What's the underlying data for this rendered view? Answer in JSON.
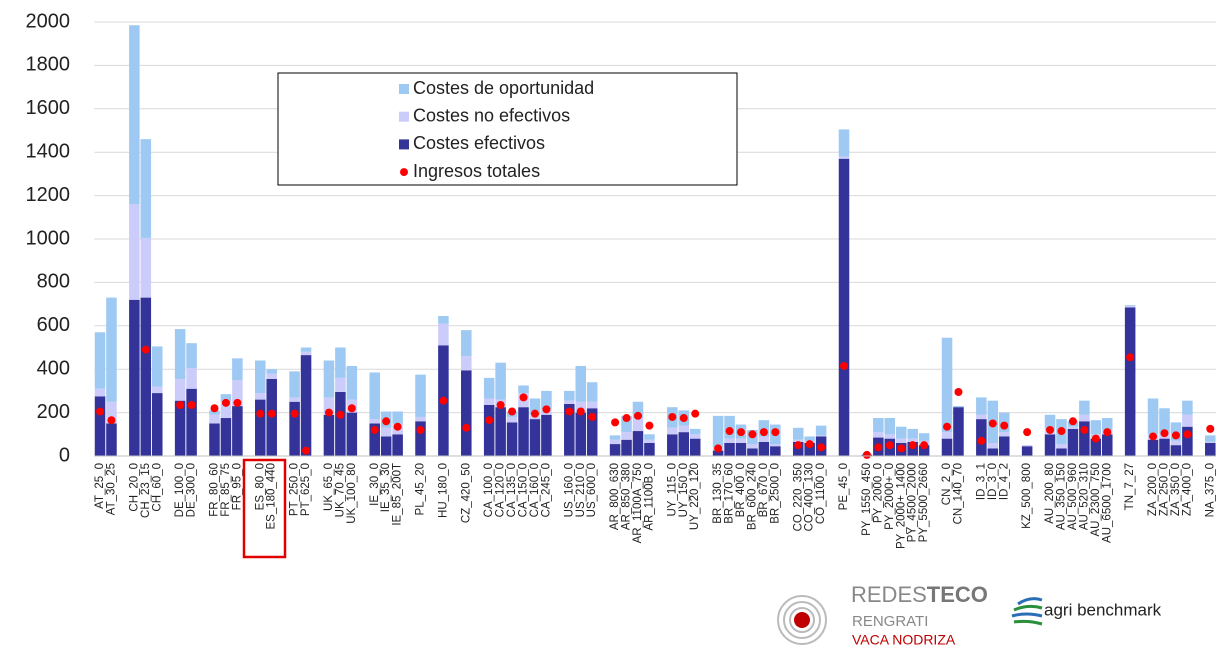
{
  "chart_data": {
    "type": "bar",
    "stacked": true,
    "categories": [
      "AT_25_0",
      "AT_30_25",
      null,
      "CH_20_0",
      "CH_23_15",
      "CH_60_0",
      null,
      "DE_100_0",
      "DE_300_0",
      null,
      "FR_80_60",
      "FR_85_75",
      "FR_95_0",
      null,
      "ES_80_0",
      "ES_180_440",
      null,
      "PT_250_0",
      "PT_625_0",
      null,
      "UK_65_0",
      "UK_70_45",
      "UK_100_80",
      null,
      "IE_30_0",
      "IE_35_30",
      "IE_85_200T",
      null,
      "PL_45_20",
      null,
      "HU_180_0",
      null,
      "CZ_420_50",
      null,
      "CA_100_0",
      "CA_120_0",
      "CA_135_0",
      "CA_150_0",
      "CA_160_0",
      "CA_245_0",
      null,
      "US_160_0",
      "US_210_0",
      "US_600_0",
      null,
      "AR_800_630",
      "AR_850_380",
      "AR_1100A_750",
      "AR_1100B_0",
      null,
      "UY_115_0",
      "UY_150_0",
      "UY_220_120",
      null,
      "BR_130_35",
      "BR_170_60",
      "BR_400_0",
      "BR_600_240",
      "BR_670_0",
      "BR_2500_0",
      null,
      "CO_220_350",
      "CO_400_130",
      "CO_1100_0",
      null,
      "PE_45_0",
      null,
      "PY_1550_450",
      "PY_2000_0",
      "PY_2000+_0",
      "PY_2000+_1400",
      "PY_4500_2000",
      "PY_5500_2660",
      null,
      "CN_2_0",
      "CN_140_70",
      null,
      "ID_3_1",
      "ID_3_0",
      "ID_4_2",
      null,
      "KZ_500_800",
      null,
      "AU_200_80",
      "AU_350_150",
      "AU_500_960",
      "AU_520_310",
      "AU_2300_750",
      "AU_6500_1700",
      null,
      "TN_7_27",
      null,
      "ZA_200_0",
      "ZA_250_0",
      "ZA_350_0",
      "ZA_400_0",
      null,
      "NA_375_0"
    ],
    "series": [
      {
        "name": "Costes de oportunidad",
        "color": "#9dc9f2",
        "kind": "bar",
        "values": [
          260,
          480,
          null,
          825,
          455,
          185,
          null,
          230,
          115,
          null,
          20,
          35,
          100,
          null,
          150,
          20,
          null,
          120,
          20,
          null,
          170,
          140,
          155,
          null,
          215,
          75,
          55,
          null,
          195,
          null,
          35,
          null,
          120,
          null,
          95,
          170,
          25,
          35,
          75,
          85,
          null,
          45,
          165,
          90,
          null,
          20,
          75,
          75,
          25,
          null,
          95,
          70,
          25,
          null,
          145,
          105,
          65,
          65,
          75,
          90,
          null,
          55,
          20,
          45,
          null,
          125,
          null,
          5,
          65,
          75,
          55,
          45,
          35,
          null,
          435,
          5,
          null,
          80,
          195,
          90,
          null,
          0,
          null,
          70,
          115,
          25,
          65,
          65,
          55,
          null,
          5,
          null,
          165,
          115,
          85,
          65,
          null,
          30
        ]
      },
      {
        "name": "Costes no efectivos",
        "color": "#ccccfa",
        "kind": "bar",
        "values": [
          35,
          100,
          null,
          440,
          275,
          30,
          null,
          100,
          95,
          null,
          40,
          75,
          120,
          null,
          30,
          25,
          null,
          20,
          15,
          null,
          80,
          65,
          60,
          null,
          20,
          40,
          50,
          null,
          20,
          null,
          100,
          null,
          65,
          null,
          30,
          35,
          25,
          65,
          20,
          25,
          null,
          15,
          50,
          30,
          null,
          20,
          35,
          60,
          15,
          null,
          30,
          30,
          20,
          null,
          15,
          20,
          20,
          20,
          25,
          10,
          null,
          10,
          10,
          5,
          null,
          10,
          null,
          0,
          25,
          20,
          20,
          15,
          20,
          null,
          30,
          0,
          null,
          20,
          25,
          20,
          null,
          5,
          null,
          20,
          20,
          10,
          30,
          20,
          20,
          null,
          5,
          null,
          25,
          25,
          20,
          55,
          null,
          5
        ]
      },
      {
        "name": "Costes efectivos",
        "color": "#333399",
        "kind": "bar",
        "values": [
          275,
          150,
          null,
          720,
          730,
          290,
          null,
          255,
          310,
          null,
          150,
          175,
          230,
          null,
          260,
          355,
          null,
          250,
          465,
          null,
          190,
          295,
          200,
          null,
          150,
          90,
          100,
          null,
          160,
          null,
          510,
          null,
          395,
          null,
          235,
          225,
          155,
          225,
          170,
          190,
          null,
          240,
          200,
          220,
          null,
          55,
          75,
          115,
          60,
          null,
          100,
          110,
          80,
          null,
          25,
          60,
          60,
          35,
          65,
          45,
          null,
          65,
          60,
          90,
          null,
          1370,
          null,
          5,
          85,
          80,
          60,
          65,
          50,
          null,
          80,
          225,
          null,
          170,
          35,
          90,
          null,
          45,
          null,
          100,
          35,
          125,
          160,
          80,
          100,
          null,
          685,
          null,
          75,
          80,
          50,
          135,
          null,
          60
        ]
      },
      {
        "name": "Ingresos totales",
        "color": "#ff0000",
        "kind": "dot",
        "values": [
          205,
          165,
          null,
          null,
          490,
          null,
          null,
          235,
          235,
          null,
          220,
          245,
          245,
          null,
          195,
          195,
          null,
          195,
          25,
          null,
          200,
          190,
          220,
          null,
          120,
          160,
          135,
          null,
          120,
          null,
          255,
          null,
          130,
          null,
          165,
          235,
          205,
          270,
          195,
          215,
          null,
          205,
          205,
          180,
          null,
          155,
          175,
          185,
          140,
          null,
          180,
          175,
          195,
          null,
          35,
          115,
          110,
          100,
          110,
          110,
          null,
          50,
          55,
          40,
          null,
          415,
          null,
          5,
          40,
          50,
          35,
          50,
          50,
          null,
          135,
          295,
          null,
          70,
          150,
          140,
          null,
          110,
          null,
          120,
          115,
          160,
          120,
          80,
          110,
          null,
          455,
          null,
          90,
          105,
          95,
          100,
          null,
          125
        ]
      }
    ],
    "ylim": [
      0,
      2000
    ],
    "yticks": [
      0,
      200,
      400,
      600,
      800,
      1000,
      1200,
      1400,
      1600,
      1800,
      2000
    ],
    "grid": true
  },
  "footer": {
    "redes": "REDES",
    "teco": "TECO",
    "rengrati": "RENGRATI",
    "vaca": "VACA NODRIZA",
    "agri": "agri benchmark"
  }
}
